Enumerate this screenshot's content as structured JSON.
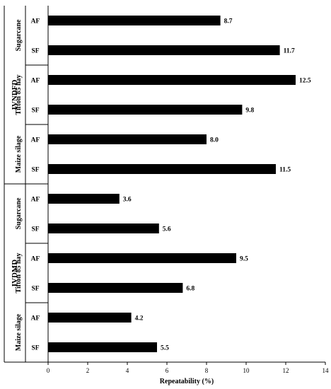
{
  "chart_data": {
    "type": "bar",
    "orientation": "horizontal",
    "title": "",
    "xlabel": "Repeatability (%)",
    "ylabel": "",
    "xlim": [
      0,
      14
    ],
    "xticks": [
      "0",
      "2",
      "4",
      "6",
      "8",
      "10",
      "12",
      "14"
    ],
    "grid": false,
    "legend": "none",
    "bar_color": "#000000",
    "groups": [
      {
        "name": "IVNDFD",
        "subgroups": [
          {
            "name": "Sugarcane",
            "bars": [
              {
                "category": "AF",
                "value": 8.7,
                "label": "8.7"
              },
              {
                "category": "SF",
                "value": 11.7,
                "label": "11.7"
              }
            ]
          },
          {
            "name": "Tifton 85 hay",
            "bars": [
              {
                "category": "AF",
                "value": 12.5,
                "label": "12.5"
              },
              {
                "category": "SF",
                "value": 9.8,
                "label": "9.8"
              }
            ]
          },
          {
            "name": "Maize silage",
            "bars": [
              {
                "category": "AF",
                "value": 8.0,
                "label": "8.0"
              },
              {
                "category": "SF",
                "value": 11.5,
                "label": "11.5"
              }
            ]
          }
        ]
      },
      {
        "name": "IVDMD",
        "subgroups": [
          {
            "name": "Sugarcane",
            "bars": [
              {
                "category": "AF",
                "value": 3.6,
                "label": "3.6"
              },
              {
                "category": "SF",
                "value": 5.6,
                "label": "5.6"
              }
            ]
          },
          {
            "name": "Tifton 85 hay",
            "bars": [
              {
                "category": "AF",
                "value": 9.5,
                "label": "9.5"
              },
              {
                "category": "SF",
                "value": 6.8,
                "label": "6.8"
              }
            ]
          },
          {
            "name": "Maize silage",
            "bars": [
              {
                "category": "AF",
                "value": 4.2,
                "label": "4.2"
              },
              {
                "category": "SF",
                "value": 5.5,
                "label": "5.5"
              }
            ]
          }
        ]
      }
    ]
  }
}
